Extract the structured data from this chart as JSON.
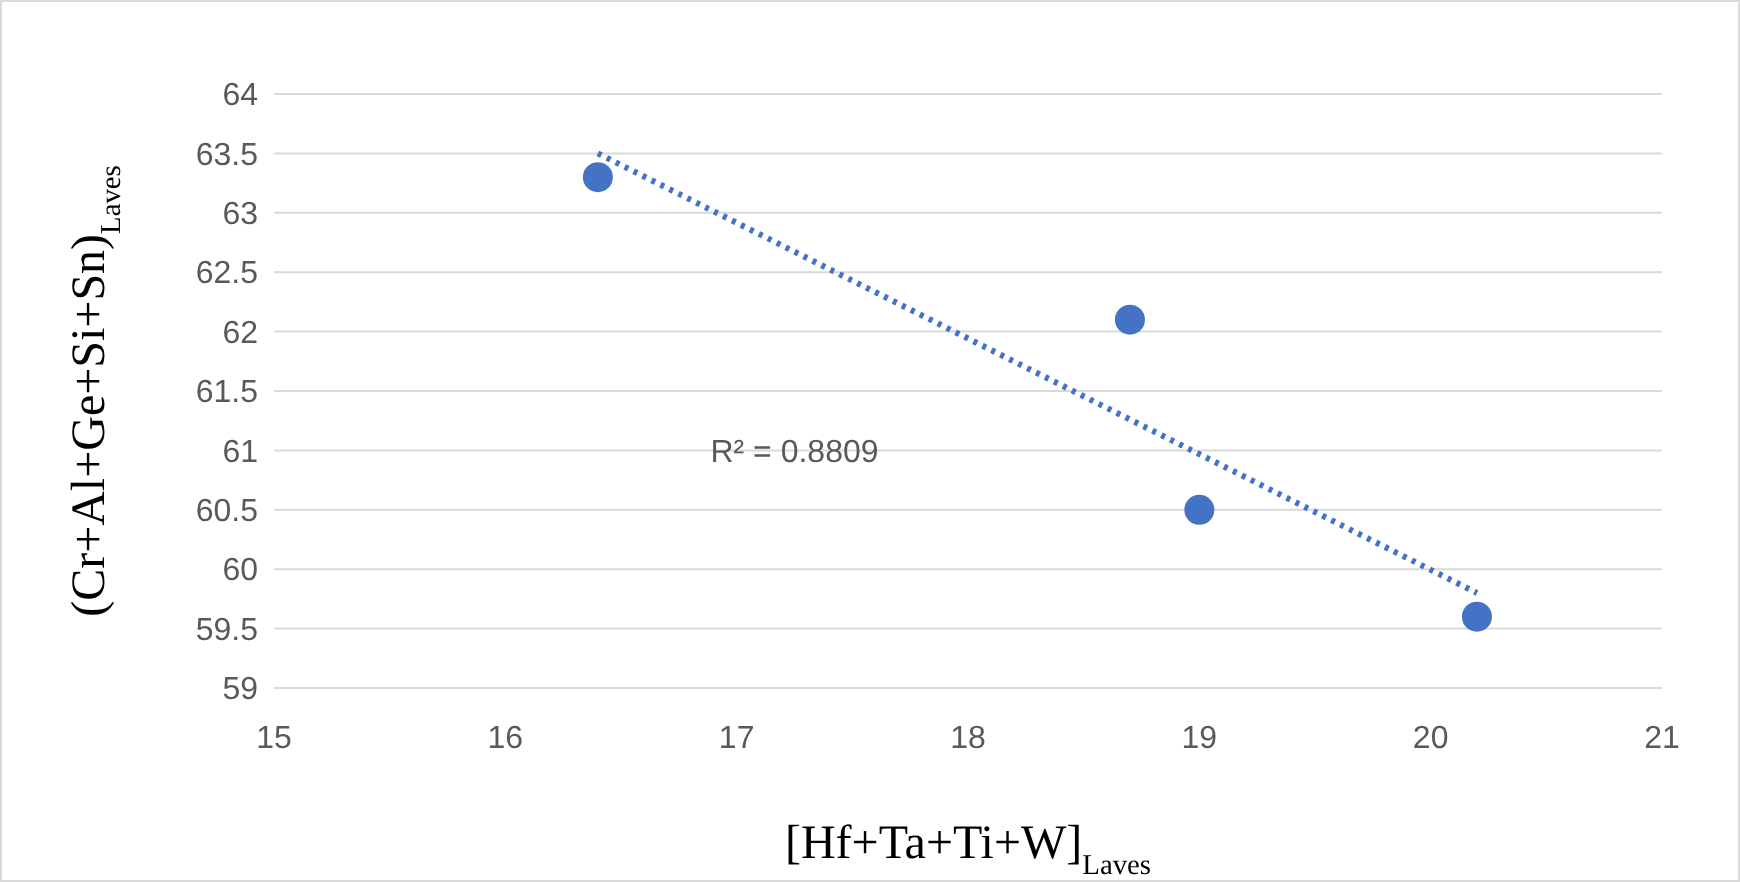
{
  "chart_data": {
    "type": "scatter",
    "xlabel": "[Hf+Ta+Ti+W]$_{Laves}$",
    "ylabel": "(Cr+Al+Ge+Si+Sn)$_{Laves}$",
    "xlim": [
      15,
      21
    ],
    "xticks": [
      15,
      16,
      17,
      18,
      19,
      20,
      21
    ],
    "ylim": [
      59,
      64
    ],
    "yticks": [
      59,
      59.5,
      60,
      60.5,
      61,
      61.5,
      62,
      62.5,
      63,
      63.5,
      64
    ],
    "grid": "y",
    "marker": "circle",
    "series": [
      {
        "color": "#4472c4",
        "x": [
          16.4,
          18.7,
          19.0,
          20.2
        ],
        "values": [
          63.3,
          62.1,
          60.5,
          59.6
        ]
      },
      {
        "type": "line",
        "color": "#4472c4",
        "line_style": "dotted",
        "marker": "none",
        "x": [
          16.4,
          20.2
        ],
        "values": [
          63.5,
          59.8
        ]
      }
    ],
    "annotations": [
      "R² = 0.8809"
    ]
  }
}
